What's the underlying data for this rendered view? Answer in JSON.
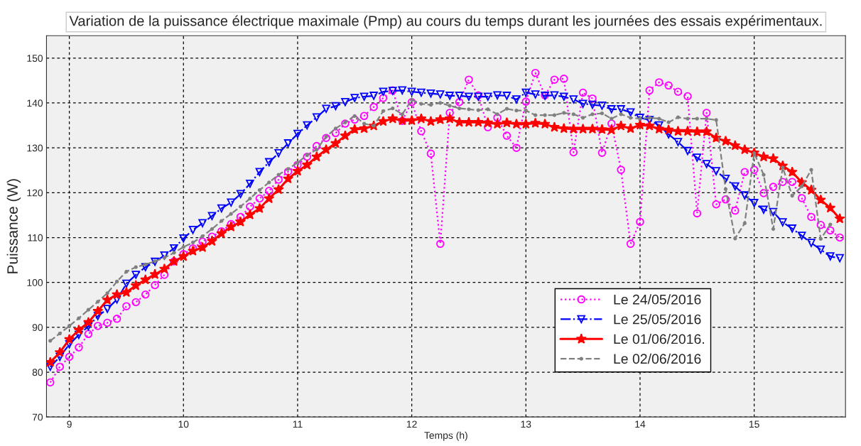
{
  "chart_data": {
    "type": "line",
    "title": "Variation de la puissance électrique maximale (Pmp) au cours du temps durant les journées des essais expérimentaux.",
    "xlabel": "Temps (h)",
    "ylabel": "Puissance (W)",
    "x": [
      8.833,
      8.917,
      9.0,
      9.083,
      9.167,
      9.25,
      9.333,
      9.417,
      9.5,
      9.583,
      9.667,
      9.75,
      9.833,
      9.917,
      10.0,
      10.083,
      10.167,
      10.25,
      10.333,
      10.417,
      10.5,
      10.583,
      10.667,
      10.75,
      10.833,
      10.917,
      11.0,
      11.083,
      11.167,
      11.25,
      11.333,
      11.417,
      11.5,
      11.583,
      11.667,
      11.75,
      11.833,
      11.917,
      12.0,
      12.083,
      12.167,
      12.25,
      12.333,
      12.417,
      12.5,
      12.583,
      12.667,
      12.75,
      12.833,
      12.917,
      13.0,
      13.083,
      13.167,
      13.25,
      13.333,
      13.417,
      13.5,
      13.583,
      13.667,
      13.75,
      13.833,
      13.917,
      14.0,
      14.083,
      14.167,
      14.25,
      14.333,
      14.417,
      14.5,
      14.583,
      14.667,
      14.75,
      14.833,
      14.917,
      15.0,
      15.083,
      15.167,
      15.25,
      15.333,
      15.417,
      15.5,
      15.583,
      15.667,
      15.75
    ],
    "series": [
      {
        "name": "Le 24/05/2016",
        "color": "#ff00ff",
        "marker": "circle",
        "line_style": "dotted",
        "values": [
          77.7,
          81.2,
          83.4,
          85.5,
          88.5,
          90.3,
          91.0,
          91.9,
          94.7,
          95.6,
          97.3,
          99.4,
          101.7,
          104.7,
          106.3,
          107.6,
          109.1,
          110.2,
          111.4,
          113.0,
          114.6,
          116.9,
          118.7,
          120.4,
          122.9,
          124.7,
          126.2,
          128.0,
          130.4,
          132.2,
          133.3,
          135.4,
          136.3,
          137.1,
          139.1,
          141.1,
          142.8,
          136.0,
          140.2,
          133.7,
          128.7,
          108.6,
          137.8,
          140.2,
          145.2,
          141.7,
          134.6,
          136.7,
          132.7,
          130.0,
          140.3,
          146.7,
          141.7,
          145.2,
          145.4,
          129.0,
          142.3,
          141.0,
          128.9,
          135.4,
          125.1,
          108.6,
          113.5,
          142.8,
          144.6,
          143.9,
          142.5,
          141.5,
          115.4,
          137.8,
          117.4,
          118.5,
          116.0,
          124.6,
          125.1,
          119.9,
          121.3,
          122.4,
          122.4,
          118.8,
          114.6,
          112.8,
          111.6,
          110.0
        ]
      },
      {
        "name": "Le 25/05/2016",
        "color": "#0000ff",
        "marker": "triangle",
        "line_style": "dashdot",
        "values": [
          81.2,
          83.4,
          86.2,
          88.3,
          90.2,
          92.5,
          94.1,
          96.2,
          99.7,
          101.7,
          103.4,
          104.6,
          106.0,
          107.6,
          109.8,
          111.7,
          113.2,
          114.8,
          116.5,
          117.8,
          119.7,
          122.0,
          124.6,
          126.8,
          128.8,
          131.0,
          133.1,
          135.0,
          136.8,
          138.7,
          139.3,
          140.2,
          141.1,
          141.4,
          141.6,
          142.5,
          142.7,
          142.8,
          142.5,
          142.3,
          142.1,
          141.9,
          141.6,
          141.6,
          141.4,
          141.4,
          141.4,
          141.7,
          141.6,
          140.8,
          142.3,
          141.9,
          141.6,
          141.7,
          141.4,
          140.8,
          139.8,
          139.6,
          139.4,
          138.6,
          138.6,
          137.9,
          136.7,
          136.2,
          135.0,
          133.0,
          131.3,
          129.3,
          127.8,
          126.4,
          124.8,
          123.1,
          121.4,
          119.4,
          117.7,
          116.2,
          115.7,
          113.4,
          112.0,
          110.4,
          108.8,
          107.3,
          105.8,
          105.4
        ]
      },
      {
        "name": "Le 01/06/2016.",
        "color": "#ff0000",
        "marker": "star",
        "line_style": "solid",
        "values": [
          82.2,
          84.4,
          87.3,
          89.4,
          91.1,
          93.6,
          96.1,
          97.3,
          97.8,
          99.3,
          100.6,
          101.8,
          103.0,
          104.7,
          105.8,
          107.0,
          107.8,
          109.2,
          110.9,
          112.4,
          113.5,
          115.1,
          116.5,
          118.7,
          120.7,
          123.1,
          124.8,
          126.2,
          128.0,
          129.6,
          131.0,
          132.7,
          134.1,
          134.3,
          134.9,
          135.9,
          136.5,
          136.1,
          136.1,
          136.5,
          135.9,
          136.3,
          136.5,
          135.7,
          135.7,
          135.7,
          135.6,
          135.3,
          135.6,
          135.3,
          135.3,
          135.5,
          135.3,
          134.6,
          134.3,
          134.2,
          134.2,
          134.2,
          134.1,
          134.0,
          134.9,
          134.3,
          135.1,
          134.9,
          134.2,
          134.0,
          133.7,
          133.7,
          133.6,
          133.6,
          132.2,
          131.5,
          130.5,
          129.6,
          128.9,
          128.0,
          127.6,
          126.0,
          124.6,
          122.3,
          120.6,
          118.4,
          116.6,
          114.2
        ]
      },
      {
        "name": "Le 02/06/2016",
        "color": "#808080",
        "marker": "point",
        "line_style": "dashed",
        "values": [
          87.0,
          88.6,
          90.3,
          92.0,
          93.9,
          95.7,
          97.6,
          100.2,
          102.4,
          103.4,
          104.0,
          104.7,
          105.5,
          106.6,
          107.9,
          108.9,
          110.3,
          111.9,
          113.7,
          115.3,
          116.9,
          118.7,
          120.6,
          122.3,
          124.0,
          125.3,
          126.7,
          128.4,
          129.6,
          132.5,
          134.3,
          135.7,
          137.1,
          135.4,
          134.9,
          138.2,
          138.8,
          137.5,
          140.7,
          139.8,
          139.6,
          140.0,
          139.4,
          138.8,
          138.6,
          138.4,
          138.6,
          137.5,
          138.7,
          138.3,
          138.3,
          137.3,
          137.3,
          137.3,
          137.8,
          137.5,
          136.7,
          137.5,
          137.7,
          136.5,
          137.5,
          136.7,
          136.5,
          136.7,
          136.5,
          135.7,
          136.8,
          136.5,
          136.5,
          136.5,
          136.2,
          120.8,
          109.8,
          113.2,
          128.8,
          124.0,
          111.9,
          125.6,
          119.3,
          121.4,
          125.1,
          109.7,
          112.9,
          null
        ]
      }
    ],
    "xlim": [
      8.8,
      15.8
    ],
    "ylim": [
      70,
      155
    ],
    "xticks": [
      9,
      10,
      11,
      12,
      13,
      14,
      15
    ],
    "yticks": [
      70,
      80,
      90,
      100,
      110,
      120,
      130,
      140,
      150
    ],
    "grid": true,
    "legend": "bottom right"
  }
}
